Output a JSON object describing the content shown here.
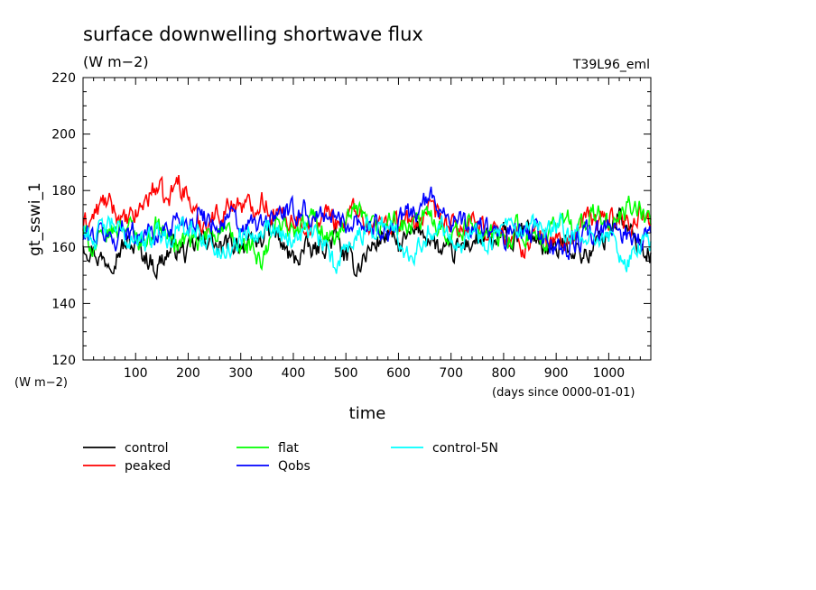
{
  "chart_data": {
    "type": "line",
    "title": "surface downwelling shortwave flux",
    "subtitle": "(W m−2)",
    "run_label": "T39L96_eml",
    "ylabel": "gt_sswi_1",
    "yunit": "(W m−2)",
    "xlabel": "time",
    "xunit": "(days since 0000-01-01)",
    "xlim": [
      0,
      1080
    ],
    "ylim": [
      120,
      220
    ],
    "xticks": [
      100,
      200,
      300,
      400,
      500,
      600,
      700,
      800,
      900,
      1000
    ],
    "yticks": [
      120,
      140,
      160,
      180,
      200,
      220
    ],
    "legend_position": "bottom",
    "grid": false,
    "series": [
      {
        "name": "control",
        "color": "#000000",
        "values": [
          [
            0,
            162
          ],
          [
            20,
            159
          ],
          [
            40,
            155
          ],
          [
            60,
            158
          ],
          [
            80,
            161
          ],
          [
            100,
            160
          ],
          [
            120,
            157
          ],
          [
            140,
            153
          ],
          [
            160,
            158
          ],
          [
            180,
            160
          ],
          [
            200,
            157
          ],
          [
            220,
            162
          ],
          [
            240,
            164
          ],
          [
            260,
            158
          ],
          [
            280,
            161
          ],
          [
            300,
            162
          ],
          [
            320,
            159
          ],
          [
            340,
            164
          ],
          [
            360,
            166
          ],
          [
            380,
            160
          ],
          [
            400,
            155
          ],
          [
            420,
            159
          ],
          [
            440,
            158
          ],
          [
            460,
            161
          ],
          [
            480,
            163
          ],
          [
            500,
            156
          ],
          [
            520,
            153
          ],
          [
            540,
            158
          ],
          [
            560,
            162
          ],
          [
            580,
            165
          ],
          [
            600,
            160
          ],
          [
            620,
            163
          ],
          [
            640,
            166
          ],
          [
            660,
            164
          ],
          [
            680,
            158
          ],
          [
            700,
            157
          ],
          [
            720,
            160
          ],
          [
            740,
            162
          ],
          [
            760,
            163
          ],
          [
            780,
            160
          ],
          [
            800,
            164
          ],
          [
            820,
            161
          ],
          [
            840,
            166
          ],
          [
            860,
            163
          ],
          [
            880,
            160
          ],
          [
            900,
            158
          ],
          [
            920,
            162
          ],
          [
            940,
            159
          ],
          [
            960,
            157
          ],
          [
            980,
            162
          ],
          [
            1000,
            165
          ],
          [
            1020,
            172
          ],
          [
            1040,
            164
          ],
          [
            1060,
            160
          ],
          [
            1080,
            158
          ]
        ]
      },
      {
        "name": "peaked",
        "color": "#ff0000",
        "values": [
          [
            0,
            167
          ],
          [
            20,
            171
          ],
          [
            40,
            176
          ],
          [
            60,
            173
          ],
          [
            80,
            168
          ],
          [
            100,
            171
          ],
          [
            120,
            177
          ],
          [
            140,
            182
          ],
          [
            160,
            175
          ],
          [
            180,
            184
          ],
          [
            200,
            178
          ],
          [
            220,
            168
          ],
          [
            240,
            170
          ],
          [
            260,
            172
          ],
          [
            280,
            175
          ],
          [
            300,
            176
          ],
          [
            320,
            173
          ],
          [
            340,
            178
          ],
          [
            360,
            172
          ],
          [
            380,
            170
          ],
          [
            400,
            171
          ],
          [
            420,
            169
          ],
          [
            440,
            167
          ],
          [
            460,
            172
          ],
          [
            480,
            170
          ],
          [
            500,
            169
          ],
          [
            520,
            175
          ],
          [
            540,
            168
          ],
          [
            560,
            167
          ],
          [
            580,
            170
          ],
          [
            600,
            169
          ],
          [
            620,
            168
          ],
          [
            640,
            170
          ],
          [
            660,
            172
          ],
          [
            680,
            169
          ],
          [
            700,
            167
          ],
          [
            720,
            166
          ],
          [
            740,
            168
          ],
          [
            760,
            165
          ],
          [
            780,
            167
          ],
          [
            800,
            164
          ],
          [
            820,
            163
          ],
          [
            840,
            160
          ],
          [
            860,
            165
          ],
          [
            880,
            162
          ],
          [
            900,
            163
          ],
          [
            920,
            161
          ],
          [
            940,
            166
          ],
          [
            960,
            170
          ],
          [
            980,
            169
          ],
          [
            1000,
            171
          ],
          [
            1020,
            170
          ],
          [
            1040,
            168
          ],
          [
            1060,
            172
          ],
          [
            1080,
            170
          ]
        ]
      },
      {
        "name": "flat",
        "color": "#00ff00",
        "values": [
          [
            0,
            165
          ],
          [
            20,
            160
          ],
          [
            40,
            163
          ],
          [
            60,
            166
          ],
          [
            80,
            169
          ],
          [
            100,
            164
          ],
          [
            120,
            162
          ],
          [
            140,
            168
          ],
          [
            160,
            164
          ],
          [
            180,
            161
          ],
          [
            200,
            163
          ],
          [
            220,
            160
          ],
          [
            240,
            165
          ],
          [
            260,
            167
          ],
          [
            280,
            163
          ],
          [
            300,
            159
          ],
          [
            320,
            161
          ],
          [
            340,
            152
          ],
          [
            360,
            165
          ],
          [
            380,
            170
          ],
          [
            400,
            164
          ],
          [
            420,
            167
          ],
          [
            440,
            171
          ],
          [
            460,
            165
          ],
          [
            480,
            162
          ],
          [
            500,
            168
          ],
          [
            520,
            172
          ],
          [
            540,
            167
          ],
          [
            560,
            165
          ],
          [
            580,
            170
          ],
          [
            600,
            168
          ],
          [
            620,
            166
          ],
          [
            640,
            169
          ],
          [
            660,
            171
          ],
          [
            680,
            168
          ],
          [
            700,
            165
          ],
          [
            720,
            166
          ],
          [
            740,
            169
          ],
          [
            760,
            167
          ],
          [
            780,
            164
          ],
          [
            800,
            161
          ],
          [
            820,
            167
          ],
          [
            840,
            165
          ],
          [
            860,
            162
          ],
          [
            880,
            160
          ],
          [
            900,
            168
          ],
          [
            920,
            171
          ],
          [
            940,
            166
          ],
          [
            960,
            169
          ],
          [
            980,
            172
          ],
          [
            1000,
            167
          ],
          [
            1020,
            170
          ],
          [
            1040,
            174
          ],
          [
            1060,
            172
          ],
          [
            1080,
            168
          ]
        ]
      },
      {
        "name": "Qobs",
        "color": "#0000ff",
        "values": [
          [
            0,
            163
          ],
          [
            20,
            164
          ],
          [
            40,
            165
          ],
          [
            60,
            162
          ],
          [
            80,
            168
          ],
          [
            100,
            164
          ],
          [
            120,
            166
          ],
          [
            140,
            163
          ],
          [
            160,
            167
          ],
          [
            180,
            170
          ],
          [
            200,
            169
          ],
          [
            220,
            172
          ],
          [
            240,
            170
          ],
          [
            260,
            168
          ],
          [
            280,
            171
          ],
          [
            300,
            165
          ],
          [
            320,
            168
          ],
          [
            340,
            167
          ],
          [
            360,
            170
          ],
          [
            380,
            173
          ],
          [
            400,
            171
          ],
          [
            420,
            174
          ],
          [
            440,
            169
          ],
          [
            460,
            172
          ],
          [
            480,
            170
          ],
          [
            500,
            168
          ],
          [
            520,
            171
          ],
          [
            540,
            167
          ],
          [
            560,
            168
          ],
          [
            580,
            166
          ],
          [
            600,
            168
          ],
          [
            620,
            172
          ],
          [
            640,
            174
          ],
          [
            660,
            177
          ],
          [
            680,
            175
          ],
          [
            700,
            170
          ],
          [
            720,
            168
          ],
          [
            740,
            166
          ],
          [
            760,
            167
          ],
          [
            780,
            165
          ],
          [
            800,
            162
          ],
          [
            820,
            166
          ],
          [
            840,
            164
          ],
          [
            860,
            165
          ],
          [
            880,
            163
          ],
          [
            900,
            160
          ],
          [
            920,
            159
          ],
          [
            940,
            162
          ],
          [
            960,
            165
          ],
          [
            980,
            164
          ],
          [
            1000,
            166
          ],
          [
            1020,
            167
          ],
          [
            1040,
            164
          ],
          [
            1060,
            163
          ],
          [
            1080,
            165
          ]
        ]
      },
      {
        "name": "control-5N",
        "color": "#00ffff",
        "values": [
          [
            0,
            167
          ],
          [
            20,
            163
          ],
          [
            40,
            166
          ],
          [
            60,
            168
          ],
          [
            80,
            162
          ],
          [
            100,
            165
          ],
          [
            120,
            160
          ],
          [
            140,
            166
          ],
          [
            160,
            163
          ],
          [
            180,
            168
          ],
          [
            200,
            164
          ],
          [
            220,
            166
          ],
          [
            240,
            162
          ],
          [
            260,
            157
          ],
          [
            280,
            160
          ],
          [
            300,
            164
          ],
          [
            320,
            166
          ],
          [
            340,
            168
          ],
          [
            360,
            167
          ],
          [
            380,
            165
          ],
          [
            400,
            163
          ],
          [
            420,
            166
          ],
          [
            440,
            164
          ],
          [
            460,
            160
          ],
          [
            480,
            152
          ],
          [
            500,
            162
          ],
          [
            520,
            164
          ],
          [
            540,
            166
          ],
          [
            560,
            168
          ],
          [
            580,
            169
          ],
          [
            600,
            162
          ],
          [
            620,
            158
          ],
          [
            640,
            162
          ],
          [
            660,
            166
          ],
          [
            680,
            168
          ],
          [
            700,
            165
          ],
          [
            720,
            163
          ],
          [
            740,
            166
          ],
          [
            760,
            162
          ],
          [
            780,
            164
          ],
          [
            800,
            166
          ],
          [
            820,
            165
          ],
          [
            840,
            163
          ],
          [
            860,
            167
          ],
          [
            880,
            164
          ],
          [
            900,
            168
          ],
          [
            920,
            165
          ],
          [
            940,
            163
          ],
          [
            960,
            161
          ],
          [
            980,
            166
          ],
          [
            1000,
            163
          ],
          [
            1020,
            158
          ],
          [
            1040,
            155
          ],
          [
            1060,
            160
          ],
          [
            1080,
            162
          ]
        ]
      }
    ]
  }
}
